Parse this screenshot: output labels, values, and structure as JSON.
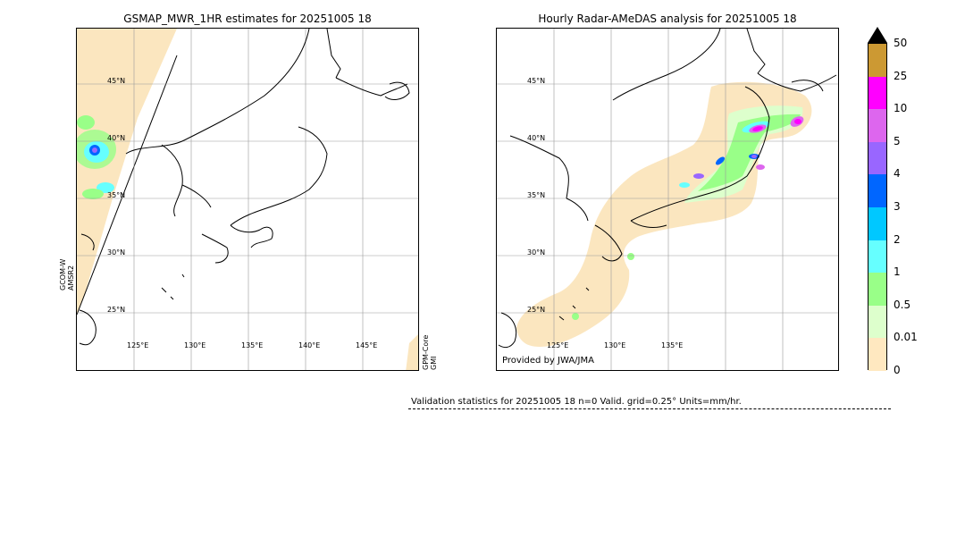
{
  "left_panel": {
    "title": "GSMAP_MWR_1HR estimates for 20251005 18",
    "lon_labels": [
      "125°E",
      "130°E",
      "135°E",
      "140°E",
      "145°E"
    ],
    "lat_labels": [
      "25°N",
      "30°N",
      "35°N",
      "40°N",
      "45°N"
    ],
    "satellite_left": "GCOM-W\nAMSR2",
    "satellite_right": "GPM-Core\nGMI"
  },
  "right_panel": {
    "title": "Hourly Radar-AMeDAS analysis for 20251005 18",
    "lon_labels": [
      "125°E",
      "130°E",
      "135°E"
    ],
    "lat_labels": [
      "25°N",
      "30°N",
      "35°N",
      "40°N",
      "45°N"
    ],
    "credit": "Provided by JWA/JMA"
  },
  "colorbar": {
    "labels": [
      "50",
      "25",
      "10",
      "5",
      "4",
      "3",
      "2",
      "1",
      "0.5",
      "0.01",
      "0"
    ],
    "colors": [
      "#cc9933",
      "#ff00ff",
      "#dd66ee",
      "#9966ff",
      "#0066ff",
      "#00c8ff",
      "#66ffff",
      "#99ff88",
      "#ddffcc",
      "#ffe8c0"
    ],
    "over_color": "#000000"
  },
  "stats": {
    "text": "Validation statistics for 20251005 18  n=0 Valid. grid=0.25° Units=mm/hr."
  }
}
